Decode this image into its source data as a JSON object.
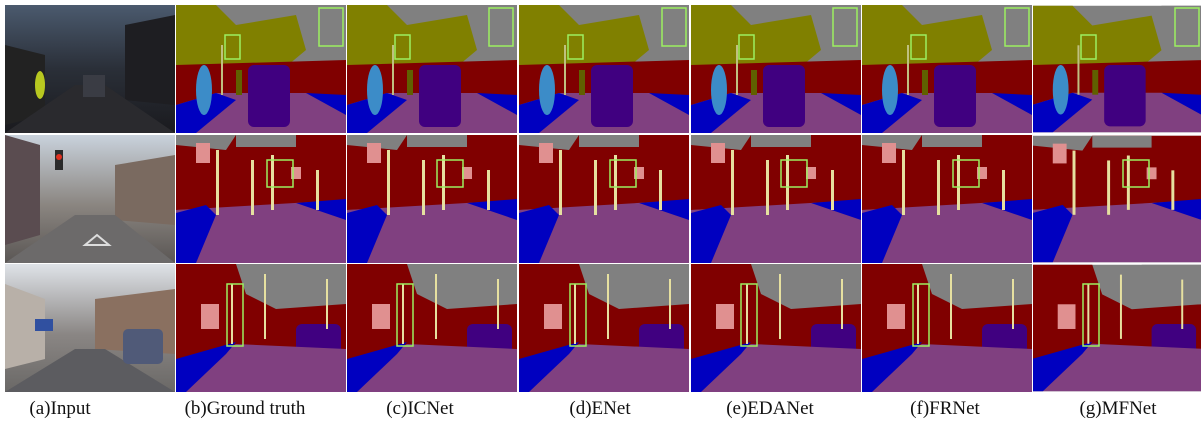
{
  "captions": [
    "(a)Input",
    "(b)Ground truth",
    "(c)ICNet",
    "(d)ENet",
    "(e)EDANet",
    "(f)FRNet",
    "(g)MFNet"
  ]
}
